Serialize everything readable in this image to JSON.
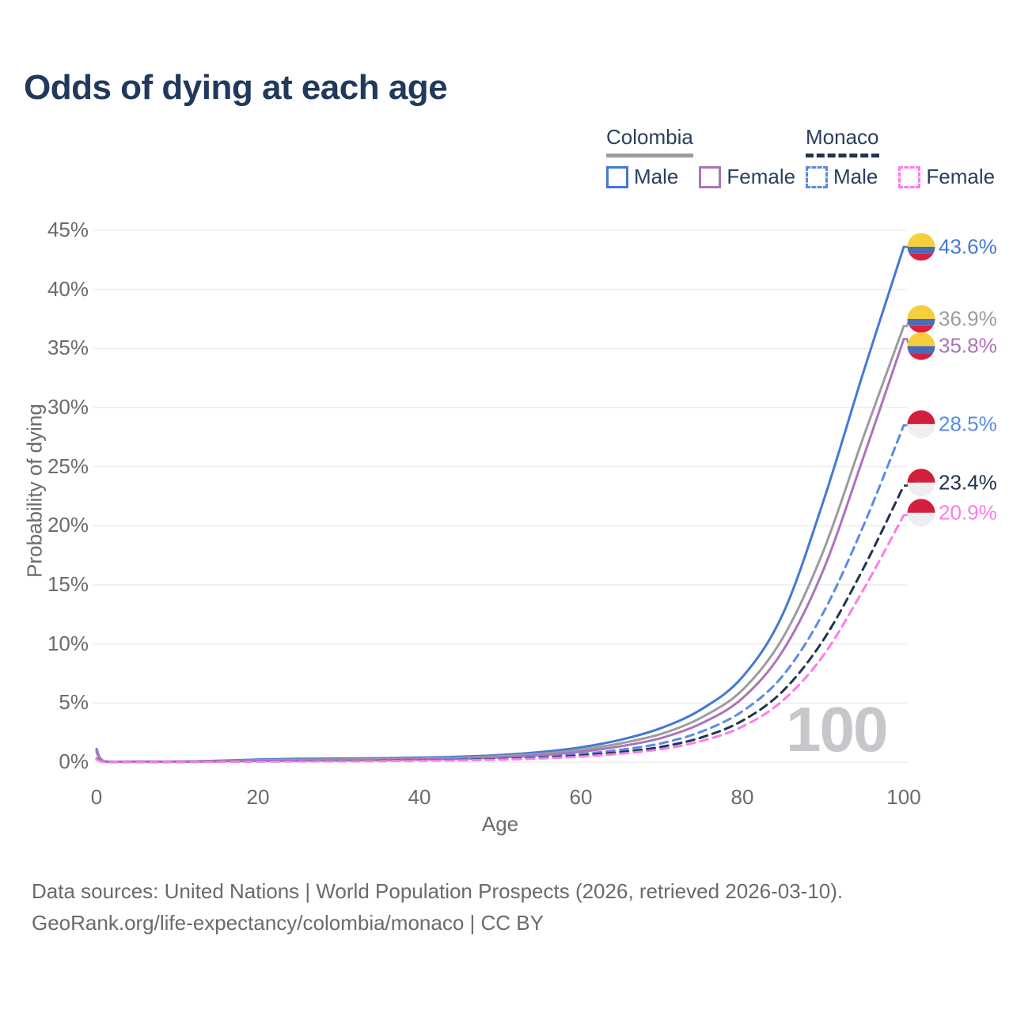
{
  "title": "Odds of dying at each age",
  "legend": {
    "groups": [
      {
        "label": "Colombia",
        "line_style": "solid",
        "line_color": "#9C9CA0",
        "items": [
          {
            "label": "Male",
            "color": "#4478D4",
            "dashed": false
          },
          {
            "label": "Female",
            "color": "#AC74B8",
            "dashed": false
          }
        ]
      },
      {
        "label": "Monaco",
        "line_style": "dashed",
        "line_color": "#22344E",
        "items": [
          {
            "label": "Male",
            "color": "#5A8AE6",
            "dashed": true
          },
          {
            "label": "Female",
            "color": "#FB7CEA",
            "dashed": true
          }
        ]
      }
    ]
  },
  "watermark": "100",
  "footer": {
    "line1": "Data sources: United Nations | World Population Prospects (2026, retrieved 2026-03-10).",
    "line2": "GeoRank.org/life-expectancy/colombia/monaco | CC BY"
  },
  "chart_data": {
    "type": "line",
    "title": "Odds of dying at each age",
    "xlabel": "Age",
    "ylabel": "Probability of dying",
    "xlim": [
      0,
      100
    ],
    "ylim": [
      0,
      45
    ],
    "grid": "horizontal",
    "grid_color": "#ECECEE",
    "x_ticks": [
      {
        "v": 0,
        "label": "0"
      },
      {
        "v": 20,
        "label": "20"
      },
      {
        "v": 40,
        "label": "40"
      },
      {
        "v": 60,
        "label": "60"
      },
      {
        "v": 80,
        "label": "80"
      },
      {
        "v": 100,
        "label": "100"
      }
    ],
    "y_ticks": [
      {
        "v": 0,
        "label": "0%"
      },
      {
        "v": 5,
        "label": "5%"
      },
      {
        "v": 10,
        "label": "10%"
      },
      {
        "v": 15,
        "label": "15%"
      },
      {
        "v": 20,
        "label": "20%"
      },
      {
        "v": 25,
        "label": "25%"
      },
      {
        "v": 30,
        "label": "30%"
      },
      {
        "v": 35,
        "label": "35%"
      },
      {
        "v": 40,
        "label": "40%"
      },
      {
        "v": 45,
        "label": "45%"
      }
    ],
    "ages": [
      0,
      1,
      5,
      10,
      15,
      20,
      25,
      30,
      35,
      40,
      45,
      50,
      55,
      60,
      65,
      70,
      75,
      80,
      85,
      90,
      95,
      100
    ],
    "series": [
      {
        "name": "Colombia Male",
        "country": "Colombia",
        "sex": "Male",
        "color": "#4478D4",
        "dashed": false,
        "flag": "colombia",
        "end_label": "43.6%",
        "end_value": 43.6,
        "label_at": 43.6,
        "values": [
          1.1,
          0.07,
          0.045,
          0.05,
          0.12,
          0.22,
          0.28,
          0.3,
          0.33,
          0.38,
          0.46,
          0.6,
          0.85,
          1.25,
          1.9,
          2.9,
          4.5,
          7.2,
          12.5,
          22.0,
          33.0,
          43.6
        ]
      },
      {
        "name": "Colombia Both sexes",
        "country": "Colombia",
        "sex": "Both",
        "color": "#9C9CA0",
        "dashed": false,
        "flag": "colombia",
        "end_label": "36.9%",
        "end_value": 36.9,
        "label_at": 37.5,
        "values": [
          0.95,
          0.06,
          0.04,
          0.04,
          0.09,
          0.16,
          0.2,
          0.22,
          0.25,
          0.3,
          0.37,
          0.5,
          0.7,
          1.05,
          1.6,
          2.4,
          3.8,
          6.1,
          10.5,
          17.8,
          27.5,
          36.9
        ]
      },
      {
        "name": "Colombia Female",
        "country": "Colombia",
        "sex": "Female",
        "color": "#AC74B8",
        "dashed": false,
        "flag": "colombia",
        "end_label": "35.8%",
        "end_value": 35.8,
        "label_at": 35.2,
        "values": [
          0.85,
          0.055,
          0.035,
          0.035,
          0.07,
          0.1,
          0.12,
          0.14,
          0.17,
          0.22,
          0.28,
          0.4,
          0.58,
          0.88,
          1.35,
          2.05,
          3.3,
          5.4,
          9.4,
          16.2,
          25.8,
          35.8
        ]
      },
      {
        "name": "Monaco Male",
        "country": "Monaco",
        "sex": "Male",
        "color": "#5A8AE6",
        "dashed": true,
        "flag": "monaco",
        "end_label": "28.5%",
        "end_value": 28.5,
        "label_at": 28.6,
        "values": [
          0.3,
          0.025,
          0.02,
          0.02,
          0.05,
          0.08,
          0.1,
          0.11,
          0.13,
          0.17,
          0.22,
          0.3,
          0.45,
          0.68,
          1.05,
          1.6,
          2.6,
          4.3,
          7.3,
          12.6,
          20.0,
          28.5
        ]
      },
      {
        "name": "Monaco Both sexes",
        "country": "Monaco",
        "sex": "Both",
        "color": "#22344E",
        "dashed": true,
        "flag": "monaco",
        "end_label": "23.4%",
        "end_value": 23.4,
        "label_at": 23.65,
        "values": [
          0.27,
          0.022,
          0.018,
          0.018,
          0.04,
          0.06,
          0.08,
          0.09,
          0.11,
          0.14,
          0.18,
          0.25,
          0.37,
          0.56,
          0.85,
          1.3,
          2.1,
          3.5,
          6.0,
          10.3,
          16.4,
          23.4
        ]
      },
      {
        "name": "Monaco Female",
        "country": "Monaco",
        "sex": "Female",
        "color": "#FB7CEA",
        "dashed": true,
        "flag": "monaco",
        "end_label": "20.9%",
        "end_value": 20.9,
        "label_at": 21.1,
        "values": [
          0.24,
          0.02,
          0.015,
          0.015,
          0.03,
          0.05,
          0.06,
          0.07,
          0.09,
          0.12,
          0.15,
          0.21,
          0.31,
          0.47,
          0.72,
          1.1,
          1.8,
          3.0,
          5.2,
          9.0,
          14.6,
          20.9
        ]
      }
    ],
    "flag_colors": {
      "colombia": {
        "yellow": "#F6CF3F",
        "blue": "#4A6BB8",
        "red": "#DC1F3D"
      },
      "monaco": {
        "red": "#D21F3C",
        "white": "#F4F4F6",
        "checker": "#E9E9EC"
      }
    },
    "legend_position": "top-right"
  }
}
